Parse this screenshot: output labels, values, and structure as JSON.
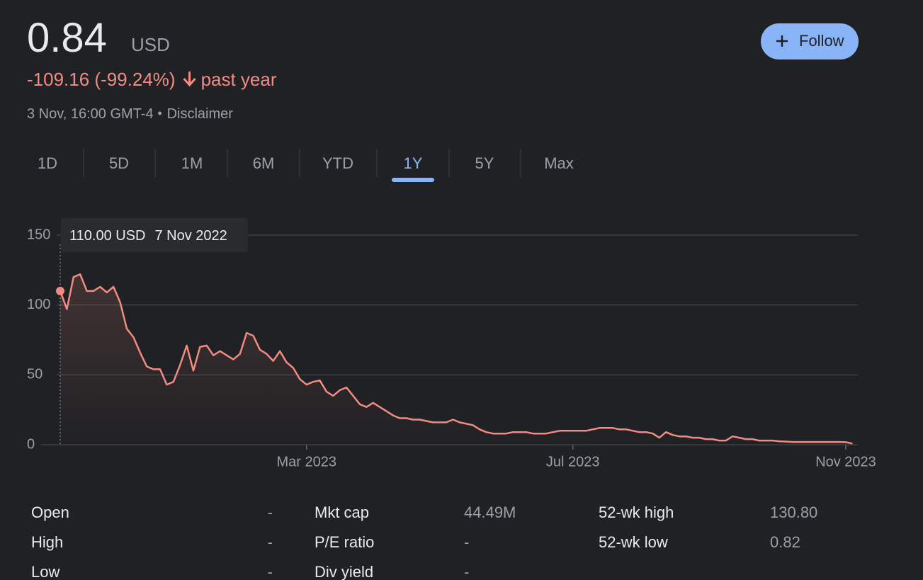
{
  "header": {
    "price": "0.84",
    "currency": "USD",
    "change": "-109.16 (-99.24%)",
    "period": "past year",
    "timestamp": "3 Nov, 16:00 GMT-4",
    "disclaimer": "Disclaimer",
    "follow": "Follow"
  },
  "tabs": {
    "items": [
      "1D",
      "5D",
      "1M",
      "6M",
      "YTD",
      "1Y",
      "5Y",
      "Max"
    ],
    "selected": 5
  },
  "chart_data": {
    "type": "line",
    "color": "#f28b82",
    "grid": true,
    "annotation": {
      "label": "110.00 USD",
      "date": "7 Nov 2022"
    },
    "categories": [
      null,
      null,
      null,
      null,
      null,
      null,
      null,
      null,
      null,
      null,
      null,
      null,
      null,
      null,
      null,
      null,
      null,
      null,
      null,
      null,
      null,
      null,
      null,
      null,
      null,
      null,
      null,
      null,
      null,
      null,
      null,
      null,
      null,
      null,
      null,
      null,
      null,
      "Mar 2023",
      null,
      null,
      null,
      null,
      null,
      null,
      null,
      null,
      null,
      null,
      null,
      null,
      null,
      null,
      null,
      null,
      null,
      null,
      null,
      null,
      null,
      null,
      null,
      null,
      null,
      null,
      null,
      null,
      null,
      null,
      null,
      null,
      null,
      null,
      null,
      null,
      null,
      null,
      null,
      "Jul 2023",
      null,
      null,
      null,
      null,
      null,
      null,
      null,
      null,
      null,
      null,
      null,
      null,
      null,
      null,
      null,
      null,
      null,
      null,
      null,
      null,
      null,
      null,
      null,
      null,
      null,
      null,
      null,
      null,
      null,
      null,
      null,
      null,
      null,
      null,
      null,
      null,
      null,
      null,
      null,
      null,
      "Nov 2023",
      null
    ],
    "values": [
      110,
      97,
      120,
      122,
      110,
      110,
      113,
      109,
      113,
      102,
      83,
      77,
      66,
      56,
      54,
      54,
      43,
      45,
      57,
      71,
      53,
      70,
      71,
      64,
      67,
      64,
      61,
      65,
      80,
      78,
      68,
      65,
      60,
      67,
      59,
      55,
      47,
      43,
      45,
      46,
      38,
      35,
      39,
      41,
      35,
      29,
      27,
      30,
      27,
      24,
      21,
      19,
      19,
      18,
      18,
      17,
      16,
      16,
      16,
      18,
      16,
      15,
      14,
      11,
      9,
      8,
      8,
      8,
      9,
      9,
      9,
      8,
      8,
      8,
      9,
      10,
      10,
      10,
      10,
      10,
      11,
      12,
      12,
      12,
      11,
      11,
      10,
      9,
      9,
      8,
      5,
      9,
      7,
      6,
      6,
      5,
      5,
      4,
      4,
      3,
      3,
      6,
      5,
      4,
      4,
      3,
      3,
      3,
      2.5,
      2.3,
      2,
      2,
      2,
      2,
      2,
      2,
      2,
      2,
      1.8,
      0.84
    ],
    "ylim": [
      0,
      150
    ],
    "yticks": [
      0,
      50,
      100,
      150
    ]
  },
  "stats": {
    "rows": [
      [
        [
          "Open",
          "-"
        ],
        [
          "Mkt cap",
          "44.49M"
        ],
        [
          "52-wk high",
          "130.80"
        ]
      ],
      [
        [
          "High",
          "-"
        ],
        [
          "P/E ratio",
          "-"
        ],
        [
          "52-wk low",
          "0.82"
        ]
      ],
      [
        [
          "Low",
          "-"
        ],
        [
          "Div yield",
          "-"
        ]
      ]
    ]
  }
}
